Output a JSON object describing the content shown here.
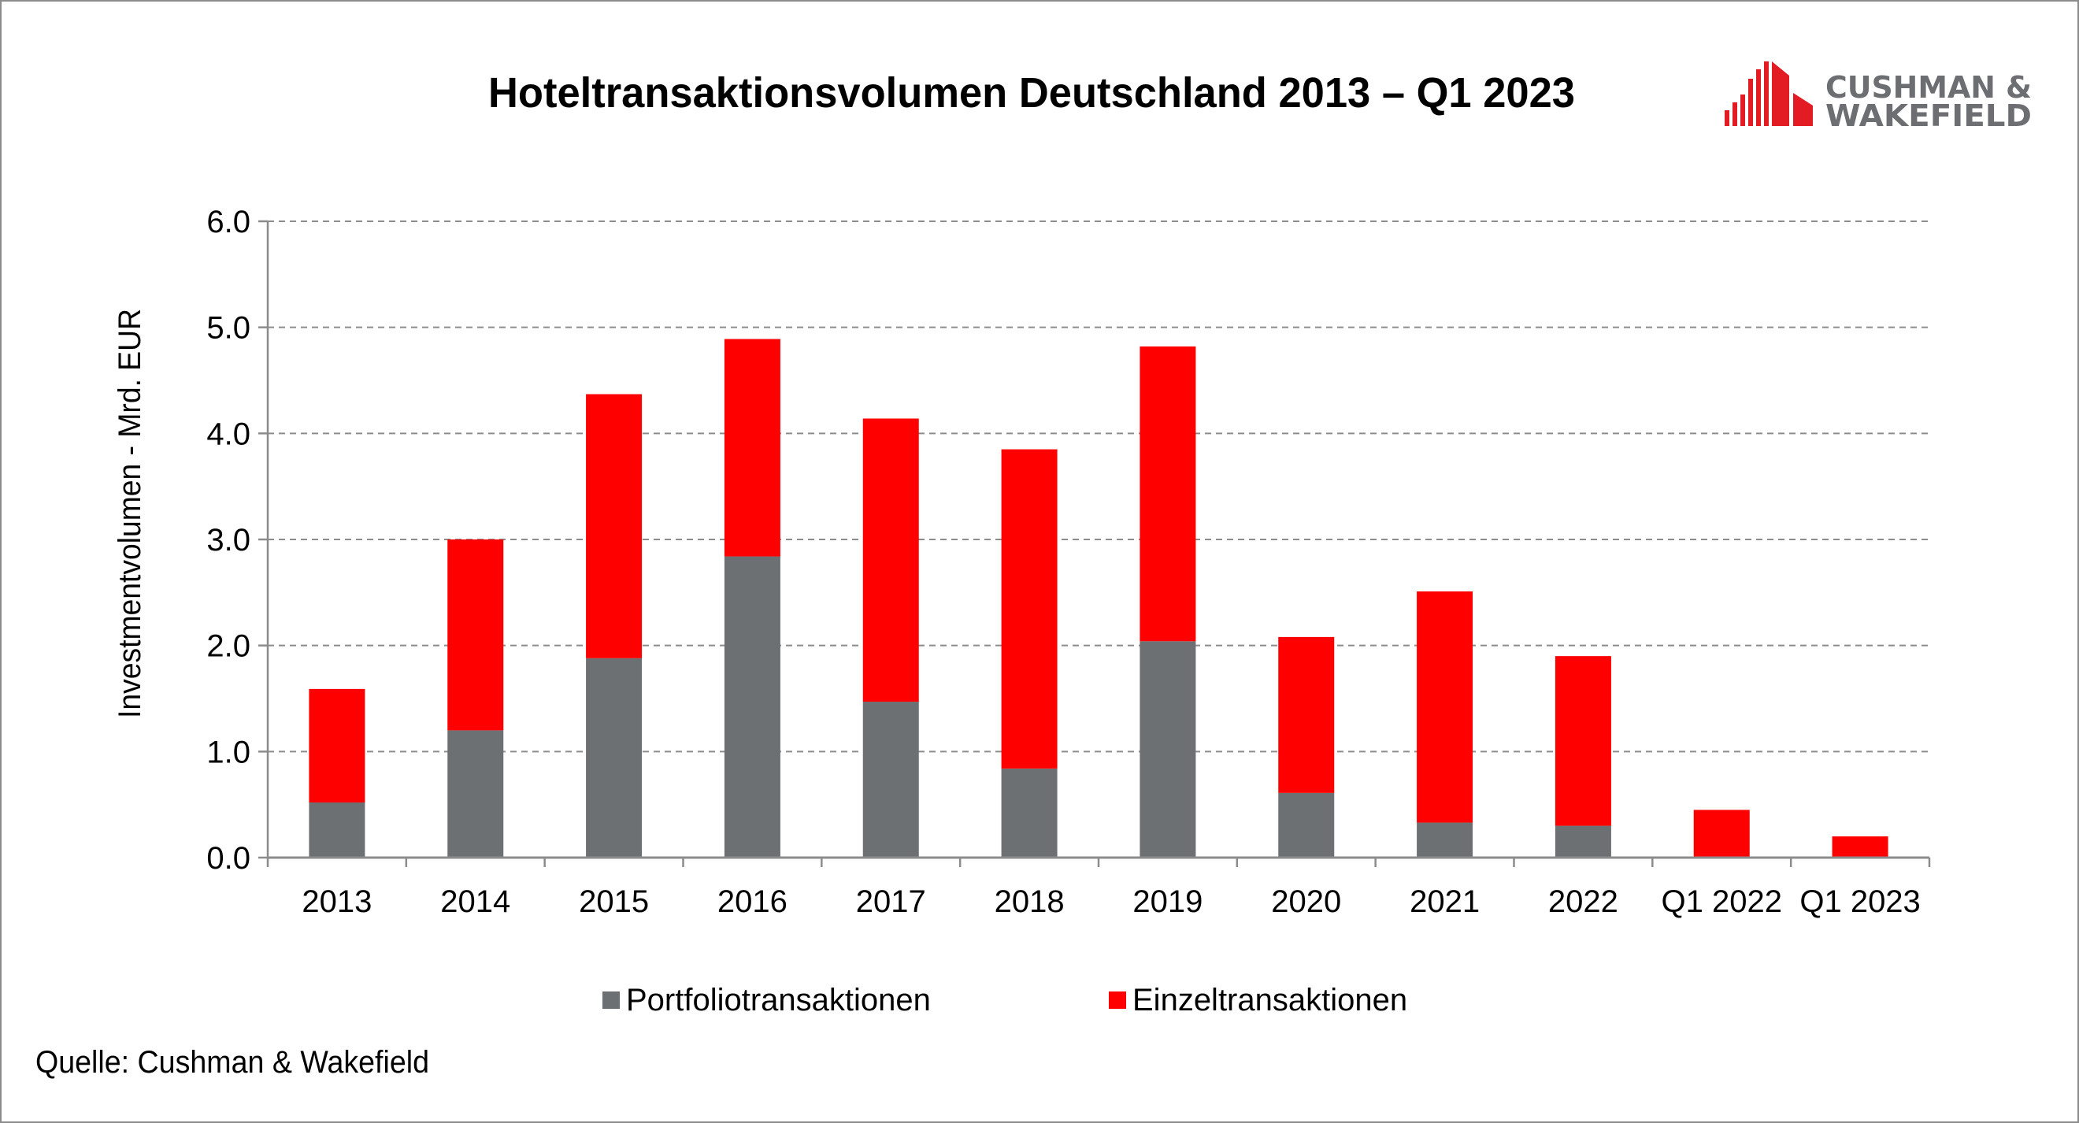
{
  "chart_data": {
    "type": "bar",
    "stacked": true,
    "title": "Hoteltransaktionsvolumen Deutschland 2013 – Q1 2023",
    "xlabel": "",
    "ylabel": "Investmentvolumen - Mrd. EUR",
    "ylim": [
      0,
      6
    ],
    "yticks": [
      "0.0",
      "1.0",
      "2.0",
      "3.0",
      "4.0",
      "5.0",
      "6.0"
    ],
    "grid": "horizontal dashed",
    "legend_position": "bottom",
    "categories": [
      "2013",
      "2014",
      "2015",
      "2016",
      "2017",
      "2018",
      "2019",
      "2020",
      "2021",
      "2022",
      "Q1 2022",
      "Q1 2023"
    ],
    "series": [
      {
        "name": "Portfoliotransaktionen",
        "color": "#6d7073",
        "values": [
          0.52,
          1.2,
          1.88,
          2.84,
          1.47,
          0.84,
          2.04,
          0.61,
          0.33,
          0.3,
          0,
          0
        ]
      },
      {
        "name": "Einzeltransaktionen",
        "color": "#ff0000",
        "values": [
          1.07,
          1.8,
          2.49,
          2.05,
          2.67,
          3.01,
          2.78,
          1.47,
          2.18,
          1.6,
          0.45,
          0.2
        ]
      }
    ]
  },
  "source": "Quelle: Cushman & Wakefield",
  "logo": {
    "text_line1": "CUSHMAN &",
    "text_line2": "WAKEFIELD",
    "color": "#e31b23",
    "text_color": "#6d6e71"
  }
}
